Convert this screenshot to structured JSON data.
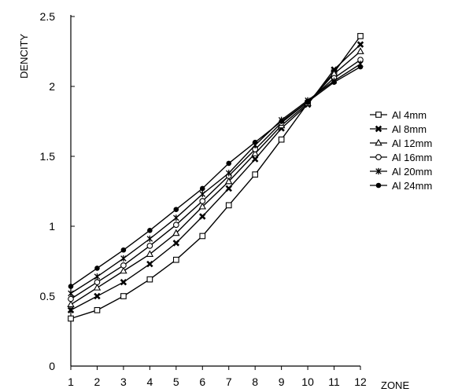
{
  "chart_data": {
    "type": "line",
    "title": "",
    "xlabel": "ZONE",
    "ylabel": "DENCITY",
    "x": [
      1,
      2,
      3,
      4,
      5,
      6,
      7,
      8,
      9,
      10,
      11,
      12
    ],
    "x_tick_labels": [
      "1",
      "2",
      "3",
      "4",
      "5",
      "6",
      "7",
      "8",
      "9",
      "10",
      "11",
      "12"
    ],
    "y_tick_labels": [
      "0",
      "0.5",
      "1",
      "1.5",
      "2",
      "2.5"
    ],
    "y_ticks": [
      0,
      0.5,
      1,
      1.5,
      2,
      2.5
    ],
    "ylim": [
      0,
      2.5
    ],
    "xlim": [
      1,
      12
    ],
    "grid": false,
    "legend_position": "right",
    "line_color": "#000000",
    "series": [
      {
        "name": "Al 4mm",
        "marker": "square-open",
        "values": [
          0.34,
          0.4,
          0.5,
          0.62,
          0.76,
          0.93,
          1.15,
          1.37,
          1.62,
          1.88,
          2.1,
          2.36
        ]
      },
      {
        "name": "Al 8mm",
        "marker": "x-filled",
        "values": [
          0.4,
          0.5,
          0.6,
          0.73,
          0.88,
          1.07,
          1.27,
          1.48,
          1.7,
          1.87,
          2.12,
          2.3
        ]
      },
      {
        "name": "Al 12mm",
        "marker": "triangle-open",
        "values": [
          0.44,
          0.56,
          0.68,
          0.8,
          0.95,
          1.14,
          1.32,
          1.52,
          1.72,
          1.88,
          2.09,
          2.25
        ]
      },
      {
        "name": "Al 16mm",
        "marker": "circle-open",
        "values": [
          0.48,
          0.6,
          0.72,
          0.86,
          1.01,
          1.18,
          1.36,
          1.55,
          1.74,
          1.89,
          2.06,
          2.19
        ]
      },
      {
        "name": "Al 20mm",
        "marker": "star",
        "values": [
          0.52,
          0.64,
          0.77,
          0.91,
          1.06,
          1.23,
          1.38,
          1.58,
          1.76,
          1.9,
          2.04,
          2.16
        ]
      },
      {
        "name": "Al 24mm",
        "marker": "circle-filled",
        "values": [
          0.57,
          0.7,
          0.83,
          0.97,
          1.12,
          1.27,
          1.45,
          1.6,
          1.75,
          1.89,
          2.03,
          2.14
        ]
      }
    ]
  }
}
